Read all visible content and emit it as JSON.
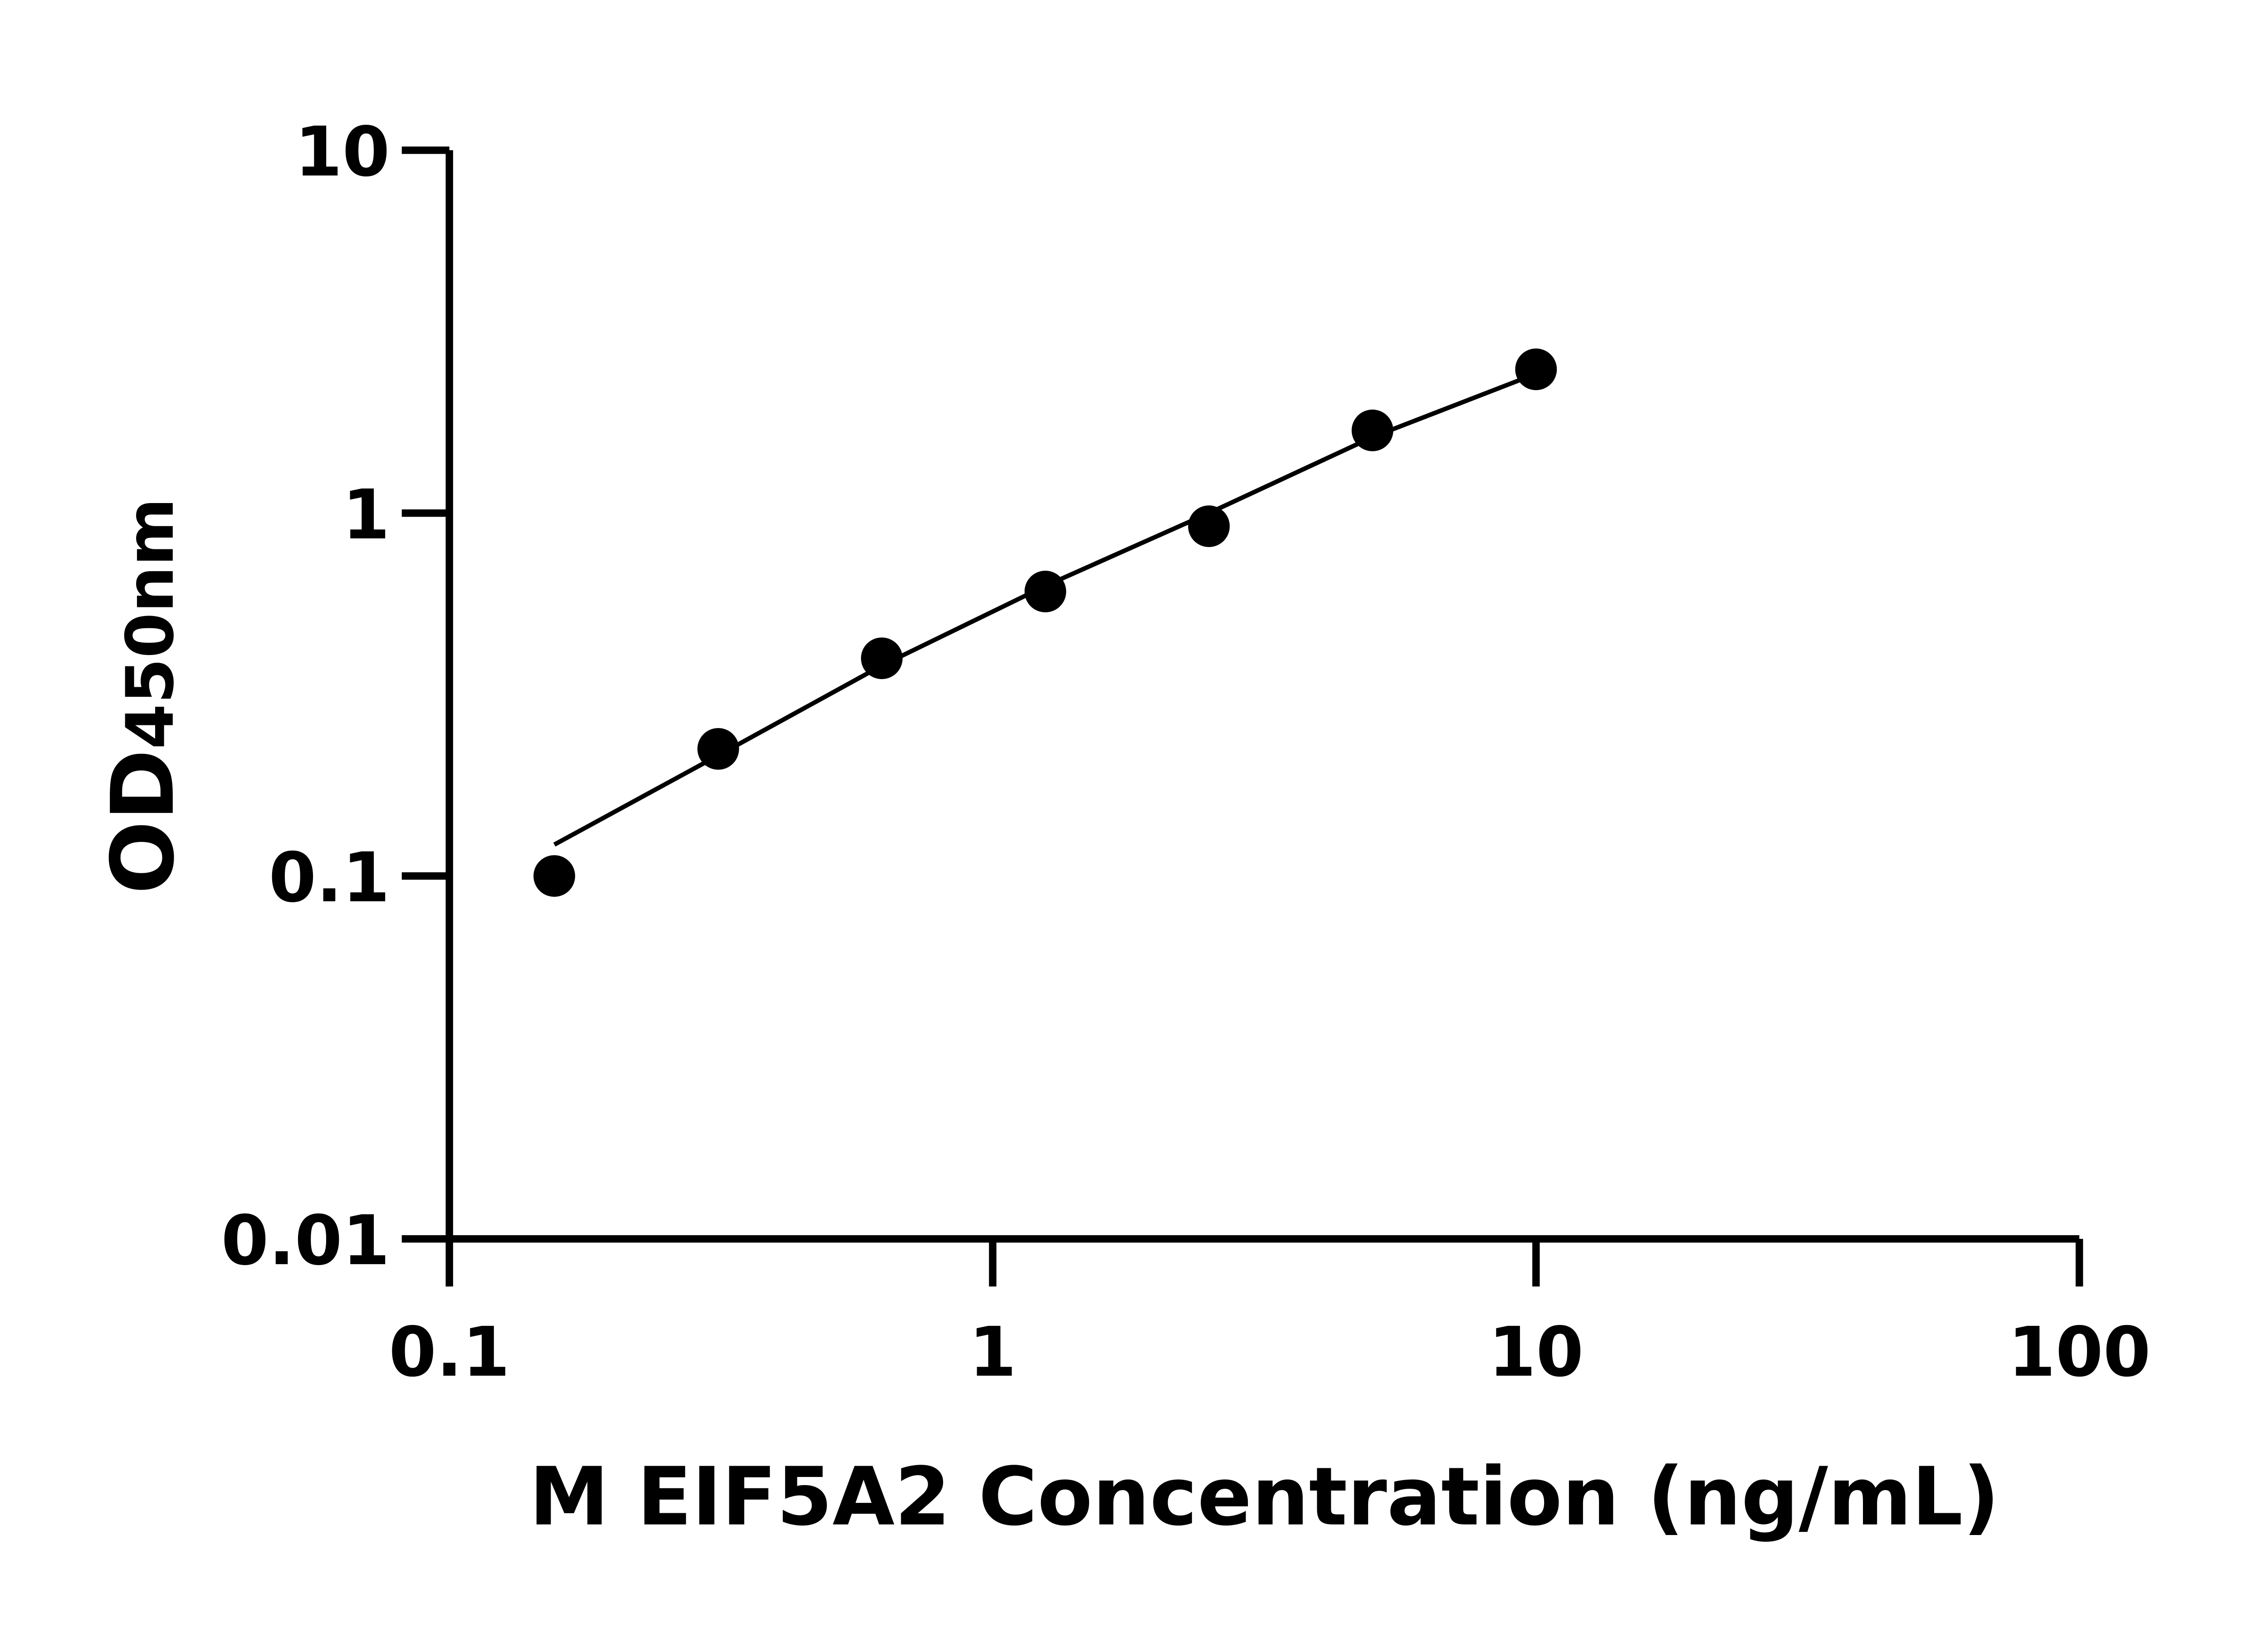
{
  "chart_data": {
    "type": "scatter",
    "title": "",
    "xlabel": "M EIF5A2 Concentration (ng/mL)",
    "ylabel_main": "OD",
    "ylabel_sub": "450nm",
    "x_scale": "log",
    "y_scale": "log",
    "xlim": [
      0.1,
      100
    ],
    "ylim": [
      0.01,
      10
    ],
    "x_ticks": [
      "0.1",
      "1",
      "10",
      "100"
    ],
    "x_tick_values": [
      0.1,
      1,
      10,
      100
    ],
    "y_ticks": [
      "0.01",
      "0.1",
      "1",
      "10"
    ],
    "y_tick_values": [
      0.01,
      0.1,
      1,
      10
    ],
    "grid": false,
    "colors": {
      "points": "#000000",
      "line": "#000000",
      "axes": "#000000"
    },
    "points": {
      "x": [
        0.156,
        0.3125,
        0.625,
        1.25,
        2.5,
        5,
        10
      ],
      "y": [
        0.1,
        0.224,
        0.398,
        0.608,
        0.92,
        1.69,
        2.49
      ]
    },
    "fit_curve": {
      "x": [
        0.156,
        0.3125,
        0.625,
        1.25,
        2.5,
        5,
        10
      ],
      "y": [
        0.122,
        0.215,
        0.38,
        0.63,
        1.0,
        1.62,
        2.42
      ]
    }
  }
}
